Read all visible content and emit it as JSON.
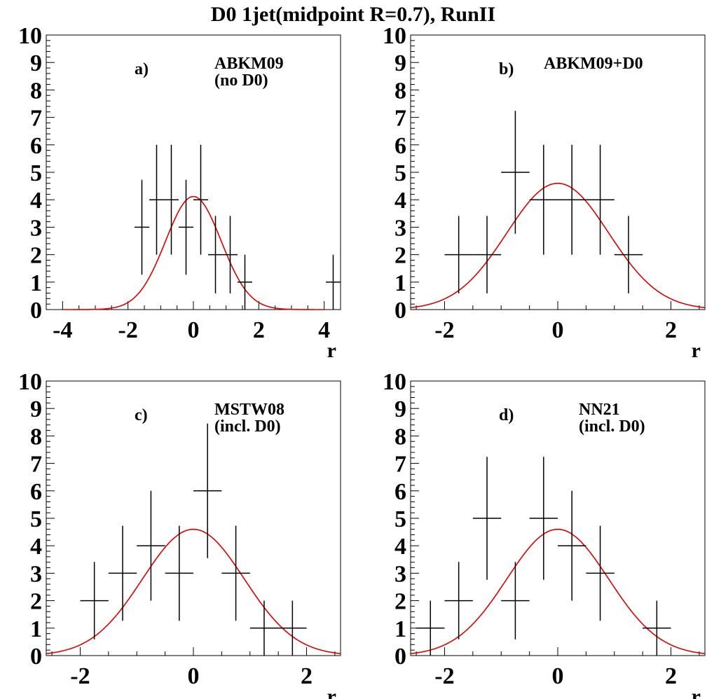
{
  "title": "D0 1jet(midpoint R=0.7), RunII",
  "colors": {
    "data": "#000000",
    "fit": "#dd0000",
    "background": "#ffffff"
  },
  "chart_data": [
    {
      "type": "scatter",
      "panel_label": "a)",
      "label_lines": [
        "ABKM09",
        "(no D0)"
      ],
      "xlabel": "r",
      "ylabel": "",
      "xlim": [
        -4.5,
        4.5
      ],
      "ylim": [
        0,
        10
      ],
      "xticks": [
        -4,
        -2,
        0,
        2,
        4
      ],
      "yticks": [
        0,
        1,
        2,
        3,
        4,
        5,
        6,
        7,
        8,
        9,
        10
      ],
      "bin_width": 0.45,
      "points": [
        {
          "x": -1.575,
          "y": 3,
          "err": 1.73
        },
        {
          "x": -1.125,
          "y": 4,
          "err": 2.0
        },
        {
          "x": -0.675,
          "y": 4,
          "err": 2.0
        },
        {
          "x": -0.225,
          "y": 3,
          "err": 1.73
        },
        {
          "x": 0.225,
          "y": 4,
          "err": 2.0
        },
        {
          "x": 0.675,
          "y": 2,
          "err": 1.41
        },
        {
          "x": 1.125,
          "y": 2,
          "err": 1.41
        },
        {
          "x": 1.575,
          "y": 1,
          "err": 1.0
        },
        {
          "x": 4.275,
          "y": 1,
          "err": 1.0
        }
      ],
      "gaussian": {
        "amplitude": 4.12,
        "mean": 0.0,
        "sigma": 0.85,
        "from": -4.0,
        "to": 4.0
      }
    },
    {
      "type": "scatter",
      "panel_label": "b)",
      "label_lines": [
        "ABKM09+D0"
      ],
      "xlabel": "r",
      "ylabel": "",
      "xlim": [
        -2.6,
        2.6
      ],
      "ylim": [
        0,
        10
      ],
      "xticks": [
        -2,
        0,
        2
      ],
      "yticks": [
        0,
        1,
        2,
        3,
        4,
        5,
        6,
        7,
        8,
        9,
        10
      ],
      "bin_width": 0.5,
      "points": [
        {
          "x": -1.75,
          "y": 2,
          "err": 1.41
        },
        {
          "x": -1.25,
          "y": 2,
          "err": 1.41
        },
        {
          "x": -0.75,
          "y": 5,
          "err": 2.24
        },
        {
          "x": -0.25,
          "y": 4,
          "err": 2.0
        },
        {
          "x": 0.25,
          "y": 4,
          "err": 2.0
        },
        {
          "x": 0.75,
          "y": 4,
          "err": 2.0
        },
        {
          "x": 1.25,
          "y": 2,
          "err": 1.41
        }
      ],
      "gaussian": {
        "amplitude": 4.6,
        "mean": 0.0,
        "sigma": 0.9,
        "from": -2.6,
        "to": 2.6
      }
    },
    {
      "type": "scatter",
      "panel_label": "c)",
      "label_lines": [
        "MSTW08",
        "(incl. D0)"
      ],
      "xlabel": "r",
      "ylabel": "",
      "xlim": [
        -2.6,
        2.6
      ],
      "ylim": [
        0,
        10
      ],
      "xticks": [
        -2,
        0,
        2
      ],
      "yticks": [
        0,
        1,
        2,
        3,
        4,
        5,
        6,
        7,
        8,
        9,
        10
      ],
      "bin_width": 0.5,
      "points": [
        {
          "x": -1.75,
          "y": 2,
          "err": 1.41
        },
        {
          "x": -1.25,
          "y": 3,
          "err": 1.73
        },
        {
          "x": -0.75,
          "y": 4,
          "err": 2.0
        },
        {
          "x": -0.25,
          "y": 3,
          "err": 1.73
        },
        {
          "x": 0.25,
          "y": 6,
          "err": 2.45
        },
        {
          "x": 0.75,
          "y": 3,
          "err": 1.73
        },
        {
          "x": 1.25,
          "y": 1,
          "err": 1.0
        },
        {
          "x": 1.75,
          "y": 1,
          "err": 1.0
        }
      ],
      "gaussian": {
        "amplitude": 4.6,
        "mean": 0.0,
        "sigma": 0.9,
        "from": -2.6,
        "to": 2.6
      }
    },
    {
      "type": "scatter",
      "panel_label": "d)",
      "label_lines": [
        "NN21",
        "(incl. D0)"
      ],
      "xlabel": "r",
      "ylabel": "",
      "xlim": [
        -2.6,
        2.6
      ],
      "ylim": [
        0,
        10
      ],
      "xticks": [
        -2,
        0,
        2
      ],
      "yticks": [
        0,
        1,
        2,
        3,
        4,
        5,
        6,
        7,
        8,
        9,
        10
      ],
      "bin_width": 0.5,
      "points": [
        {
          "x": -2.25,
          "y": 1,
          "err": 1.0
        },
        {
          "x": -1.75,
          "y": 2,
          "err": 1.41
        },
        {
          "x": -1.25,
          "y": 5,
          "err": 2.24
        },
        {
          "x": -0.75,
          "y": 2,
          "err": 1.41
        },
        {
          "x": -0.25,
          "y": 5,
          "err": 2.24
        },
        {
          "x": 0.25,
          "y": 4,
          "err": 2.0
        },
        {
          "x": 0.75,
          "y": 3,
          "err": 1.73
        },
        {
          "x": 1.75,
          "y": 1,
          "err": 1.0
        }
      ],
      "gaussian": {
        "amplitude": 4.6,
        "mean": 0.0,
        "sigma": 0.9,
        "from": -2.6,
        "to": 2.6
      }
    }
  ]
}
